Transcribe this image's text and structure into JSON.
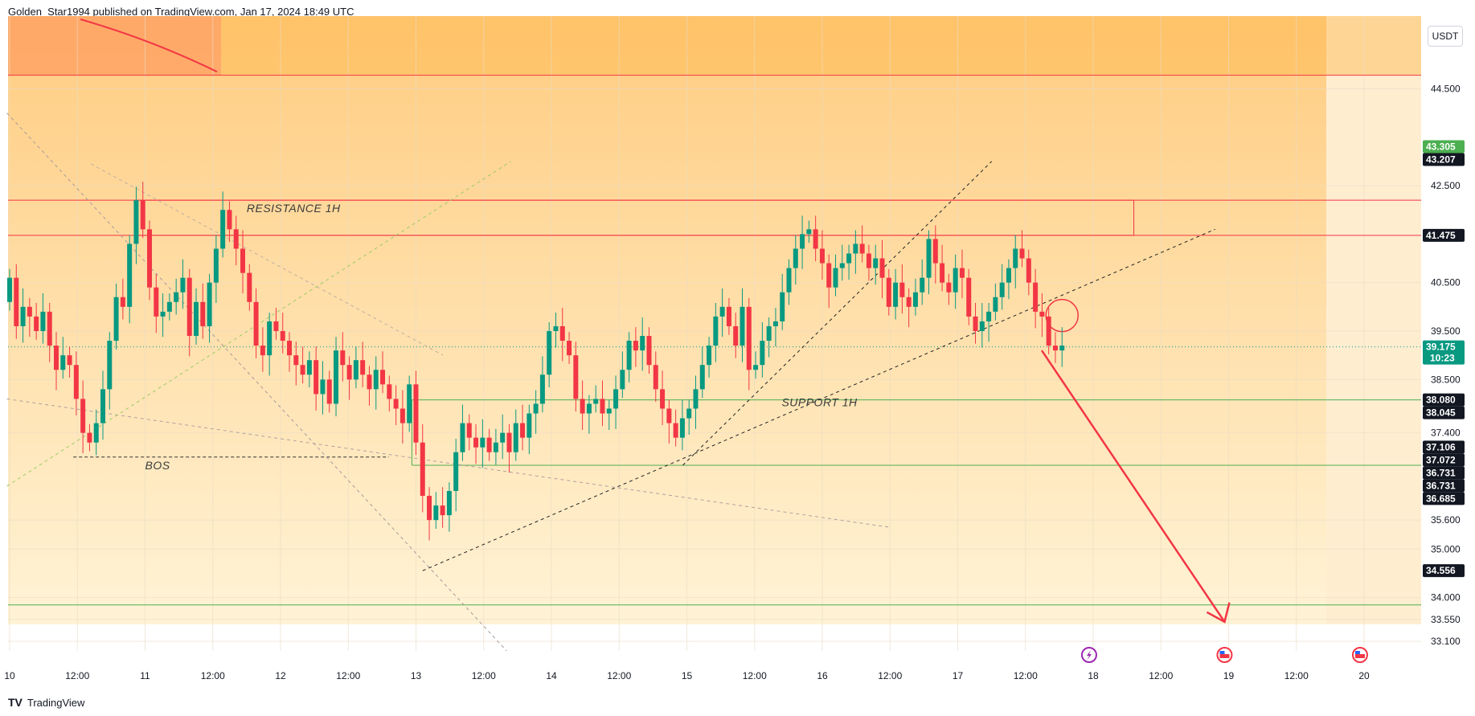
{
  "header": {
    "text": "Golden_Star1994 published on TradingView.com, Jan 17, 2024 18:49 UTC"
  },
  "footer": {
    "logo": "TV",
    "brand": "TradingView"
  },
  "currency": "USDT",
  "colors": {
    "up": "#089981",
    "down": "#f23645",
    "resistance": "#f23645",
    "support": "#4caf50",
    "arrow": "#f23645"
  },
  "icons": {
    "flash": "lightning-icon",
    "event": "us-flag-icon"
  },
  "chart_data": {
    "type": "candlestick",
    "y_range": [
      32.9,
      46.0
    ],
    "price_ticks": [
      "44.500",
      "42.500",
      "40.500",
      "39.500",
      "38.500",
      "37.400",
      "35.600",
      "35.000",
      "34.000",
      "33.550",
      "33.100"
    ],
    "price_tick_values": [
      44.5,
      42.5,
      40.5,
      39.5,
      38.5,
      37.4,
      35.6,
      35.0,
      34.0,
      33.55,
      33.1
    ],
    "time_labels": [
      {
        "label": "10",
        "t": 0.0
      },
      {
        "label": "12:00",
        "t": 0.5
      },
      {
        "label": "11",
        "t": 1.0
      },
      {
        "label": "12:00",
        "t": 1.5
      },
      {
        "label": "12",
        "t": 2.0
      },
      {
        "label": "12:00",
        "t": 2.5
      },
      {
        "label": "13",
        "t": 3.0
      },
      {
        "label": "12:00",
        "t": 3.5
      },
      {
        "label": "14",
        "t": 4.0
      },
      {
        "label": "12:00",
        "t": 4.5
      },
      {
        "label": "15",
        "t": 5.0
      },
      {
        "label": "12:00",
        "t": 5.5
      },
      {
        "label": "16",
        "t": 6.0
      },
      {
        "label": "12:00",
        "t": 6.5
      },
      {
        "label": "17",
        "t": 7.0
      },
      {
        "label": "12:00",
        "t": 7.5
      },
      {
        "label": "18",
        "t": 8.0
      },
      {
        "label": "12:00",
        "t": 8.5
      },
      {
        "label": "19",
        "t": 9.0
      },
      {
        "label": "12:00",
        "t": 9.5
      },
      {
        "label": "20",
        "t": 10.0
      }
    ],
    "price_badges": [
      {
        "label": "43.305",
        "value": 43.305,
        "color": "#4caf50"
      },
      {
        "label": "43.207",
        "value": 43.207,
        "color": "#131722"
      },
      {
        "label": "41.475",
        "value": 41.475,
        "color": "#131722"
      },
      {
        "label": "39.175",
        "value": 39.175,
        "color": "#089981",
        "sub": "10:23"
      },
      {
        "label": "38.080",
        "value": 38.08,
        "color": "#131722"
      },
      {
        "label": "38.045",
        "value": 38.045,
        "color": "#131722"
      },
      {
        "label": "37.106",
        "value": 37.106,
        "color": "#131722"
      },
      {
        "label": "37.072",
        "value": 37.072,
        "color": "#131722"
      },
      {
        "label": "36.731",
        "value": 36.731,
        "color": "#131722"
      },
      {
        "label": "36.731",
        "value": 36.731,
        "color": "#131722"
      },
      {
        "label": "36.685",
        "value": 36.685,
        "color": "#131722"
      },
      {
        "label": "34.556",
        "value": 34.556,
        "color": "#131722"
      }
    ],
    "closes": [
      40.6,
      39.6,
      40.0,
      39.8,
      39.5,
      39.9,
      39.2,
      38.7,
      39.0,
      38.8,
      38.1,
      37.4,
      37.2,
      37.6,
      38.3,
      39.3,
      40.2,
      40.0,
      41.3,
      42.2,
      41.6,
      40.4,
      39.8,
      39.9,
      40.1,
      40.3,
      40.6,
      39.4,
      40.1,
      39.6,
      40.5,
      41.2,
      42.0,
      41.6,
      41.2,
      40.7,
      40.1,
      39.2,
      39.0,
      39.7,
      39.5,
      39.3,
      39.0,
      38.8,
      38.6,
      38.9,
      38.2,
      38.5,
      38.0,
      39.1,
      38.8,
      38.5,
      38.9,
      38.6,
      38.3,
      38.7,
      38.4,
      38.1,
      37.9,
      37.6,
      38.4,
      37.2,
      36.1,
      35.6,
      35.9,
      35.7,
      36.2,
      37.0,
      37.6,
      37.3,
      37.1,
      37.3,
      37.0,
      37.2,
      37.4,
      37.0,
      37.6,
      37.3,
      37.8,
      38.0,
      38.6,
      39.5,
      39.6,
      39.3,
      39.0,
      38.1,
      37.8,
      38.0,
      38.1,
      37.8,
      37.9,
      38.3,
      38.7,
      39.3,
      39.1,
      39.4,
      38.8,
      38.3,
      37.9,
      37.6,
      37.3,
      37.7,
      37.9,
      38.3,
      38.8,
      39.2,
      39.8,
      40.0,
      39.6,
      39.2,
      40.0,
      38.7,
      38.8,
      39.3,
      39.6,
      39.7,
      40.3,
      40.8,
      41.2,
      41.5,
      41.6,
      41.2,
      40.9,
      40.4,
      40.8,
      40.9,
      41.1,
      41.3,
      41.1,
      40.8,
      41.0,
      40.6,
      40.0,
      40.5,
      40.2,
      40.0,
      40.3,
      40.6,
      41.4,
      40.9,
      40.5,
      40.3,
      40.8,
      40.6,
      39.8,
      39.5,
      39.7,
      39.9,
      40.2,
      40.5,
      40.8,
      41.2,
      41.0,
      40.5,
      39.9,
      39.8,
      39.2,
      39.1,
      39.2
    ],
    "levels": {
      "resistance_zone": [
        41.475,
        42.2
      ],
      "resistance_line_top": 44.78,
      "support_zone": [
        36.731,
        38.08
      ],
      "support_line_low": 33.85,
      "last_price": 39.175,
      "bos": 36.9
    },
    "annotations": [
      {
        "text": "RESISTANCE 1H",
        "t": 1.75,
        "v": 41.95
      },
      {
        "text": "SUPPORT 1H",
        "t": 5.7,
        "v": 37.95
      },
      {
        "text": "BOS",
        "t": 1.0,
        "v": 36.65
      }
    ],
    "title": "",
    "xlabel": "",
    "ylabel": ""
  }
}
